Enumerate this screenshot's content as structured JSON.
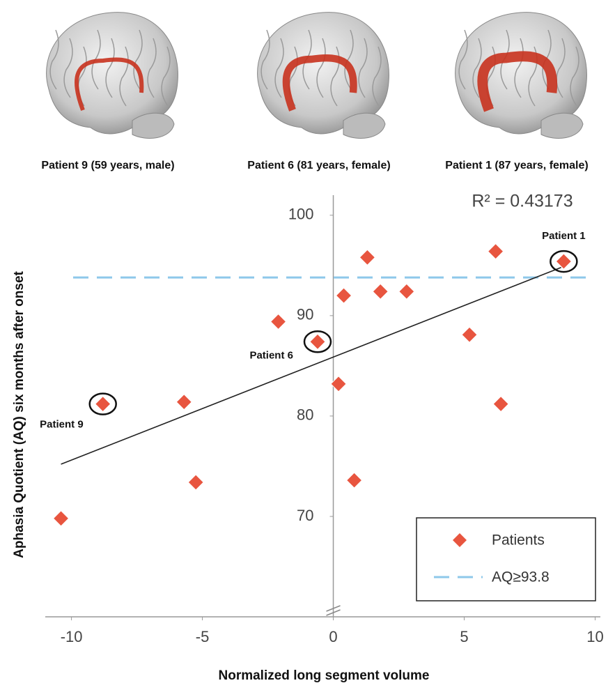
{
  "panels": [
    "Patient 9 (59 years, male)",
    "Patient 6 (81 years, female)",
    "Patient 1 (87 years, female)"
  ],
  "chart_data": {
    "type": "scatter",
    "x_label": "Normalized long segment volume",
    "y_label": "Aphasia Quotient (AQ) six months after onset",
    "r_squared_label": "R² = 0.43173",
    "series": [
      {
        "name": "Patients",
        "color": "#e8553f",
        "x": [
          -10.4,
          -8.8,
          -5.7,
          -5.25,
          -2.1,
          -0.6,
          0.2,
          0.4,
          0.8,
          1.3,
          1.8,
          2.8,
          5.2,
          6.2,
          6.4,
          8.8
        ],
        "values": [
          69.8,
          81.2,
          81.4,
          73.4,
          89.4,
          87.4,
          83.2,
          92.0,
          73.6,
          95.8,
          92.4,
          92.4,
          88.1,
          96.4,
          81.2,
          95.4
        ]
      }
    ],
    "trendline": {
      "x": [
        -10.4,
        8.7
      ],
      "y": [
        75.2,
        94.8
      ],
      "color": "#222222"
    },
    "reference_line": {
      "name": "AQ≥93.8",
      "value": 93.8,
      "color": "#8ec8ea"
    },
    "annotations": [
      "Patient 1",
      "Patient 6",
      "Patient 9"
    ],
    "xlim": [
      -11,
      10.2
    ],
    "ylim": [
      60,
      102
    ],
    "xticks": [
      -10,
      -5,
      0,
      5,
      10
    ],
    "yticks": [
      70,
      80,
      90,
      100
    ],
    "legend": "lower right"
  }
}
